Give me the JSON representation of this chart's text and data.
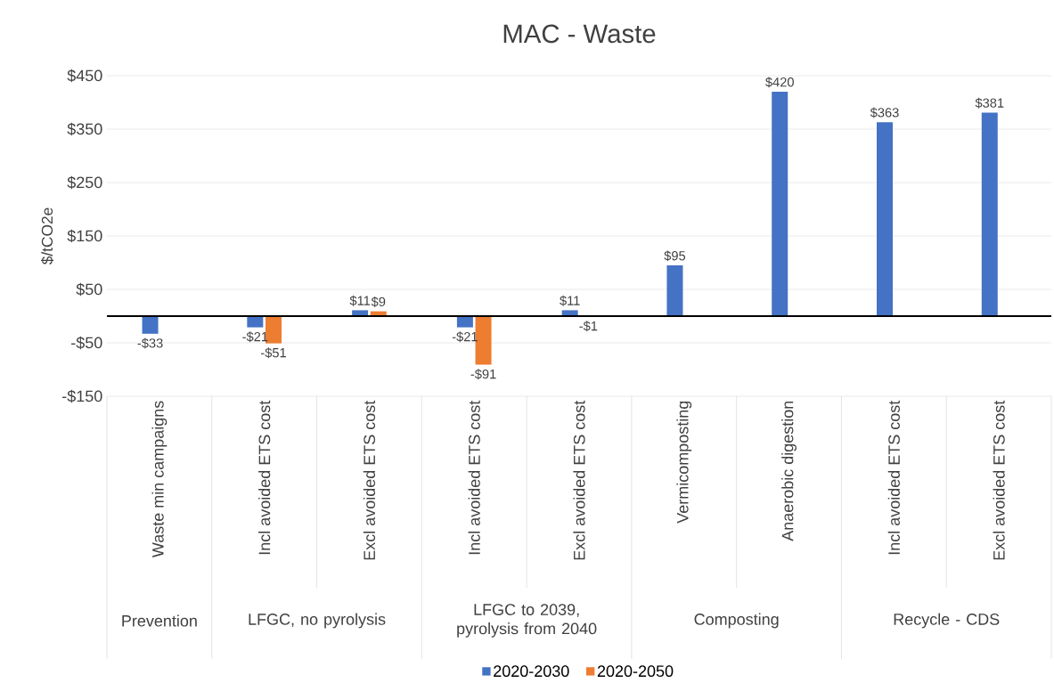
{
  "chart_data": {
    "type": "bar",
    "title": "MAC - Waste",
    "ylabel": "$/tCO2e",
    "categories": [
      "Waste min campaigns",
      "Incl avoided ETS cost",
      "Excl avoided ETS cost",
      "Incl avoided ETS cost",
      "Excl avoided ETS cost",
      "Vermicomposting",
      "Anaerobic digestion",
      "Incl avoided ETS cost",
      "Excl avoided ETS cost"
    ],
    "series": [
      {
        "name": "2020-2030",
        "color": "#4472c4",
        "values": [
          -33,
          -21,
          11,
          -21,
          11,
          95,
          420,
          363,
          381
        ],
        "value_labels": [
          "-$33",
          "-$21",
          "$11",
          "-$21",
          "$11",
          "$95",
          "$420",
          "$363",
          "$381"
        ]
      },
      {
        "name": "2020-2050",
        "color": "#ed7d31",
        "values": [
          null,
          -51,
          9,
          -91,
          -1,
          null,
          null,
          null,
          null
        ],
        "value_labels": [
          null,
          "-$51",
          "$9",
          "-$91",
          "-$1",
          null,
          null,
          null,
          null
        ]
      }
    ],
    "ylim": [
      -150,
      450
    ],
    "yticks": [
      {
        "value": -150,
        "label": "-$150"
      },
      {
        "value": -50,
        "label": "-$50"
      },
      {
        "value": 50,
        "label": "$50"
      },
      {
        "value": 150,
        "label": "$150"
      },
      {
        "value": 250,
        "label": "$250"
      },
      {
        "value": 350,
        "label": "$350"
      },
      {
        "value": 450,
        "label": "$450"
      }
    ],
    "annotations": [
      "Prevention",
      "LFGC, no pyrolysis",
      "LFGC to 2039, pyrolysis from 2040",
      "Composting",
      "Recycle - CDS"
    ],
    "grid": "y",
    "legend": "bottom"
  }
}
